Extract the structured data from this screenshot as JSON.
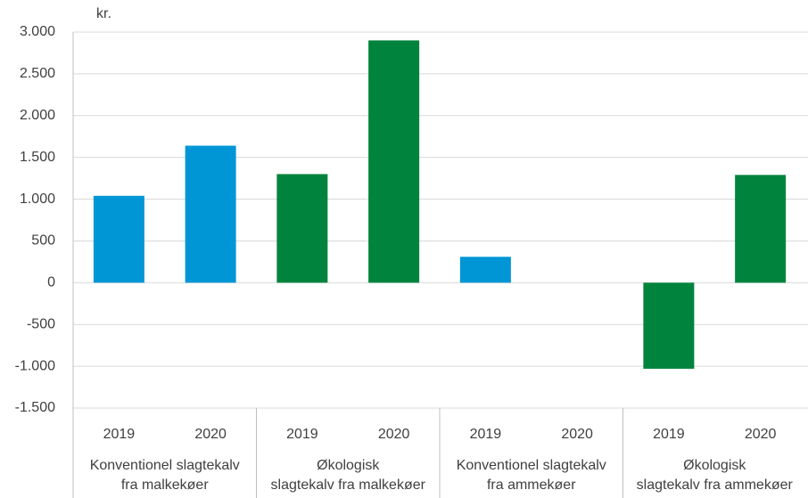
{
  "chart_data": {
    "type": "bar",
    "y_unit_label": "kr.",
    "categories": [
      "2019",
      "2020",
      "2019",
      "2020",
      "2019",
      "2020",
      "2019",
      "2020"
    ],
    "groups": [
      "Konventionel slagtekalv\nfra malkekøer",
      "Økologisk\nslagtekalv fra malkekøer",
      "Konventionel slagtekalv\nfra ammekøer",
      "Økologisk\nslagtekalv fra ammekøer"
    ],
    "values": [
      1040,
      1640,
      1300,
      2900,
      310,
      0,
      -1030,
      1290
    ],
    "colors": [
      "#0096d6",
      "#0096d6",
      "#00843d",
      "#00843d",
      "#0096d6",
      "#0096d6",
      "#00843d",
      "#00843d"
    ],
    "ylim": [
      -1500,
      3000
    ],
    "yticks": [
      {
        "value": -1500,
        "label": "-1.500"
      },
      {
        "value": -1000,
        "label": "-1.000"
      },
      -500,
      0,
      500,
      {
        "value": 1000,
        "label": "1.000"
      },
      {
        "value": 1500,
        "label": "1.500"
      },
      {
        "value": 2000,
        "label": "2.000"
      },
      {
        "value": 2500,
        "label": "2.500"
      },
      {
        "value": 3000,
        "label": "3.000"
      }
    ],
    "grid": true
  }
}
